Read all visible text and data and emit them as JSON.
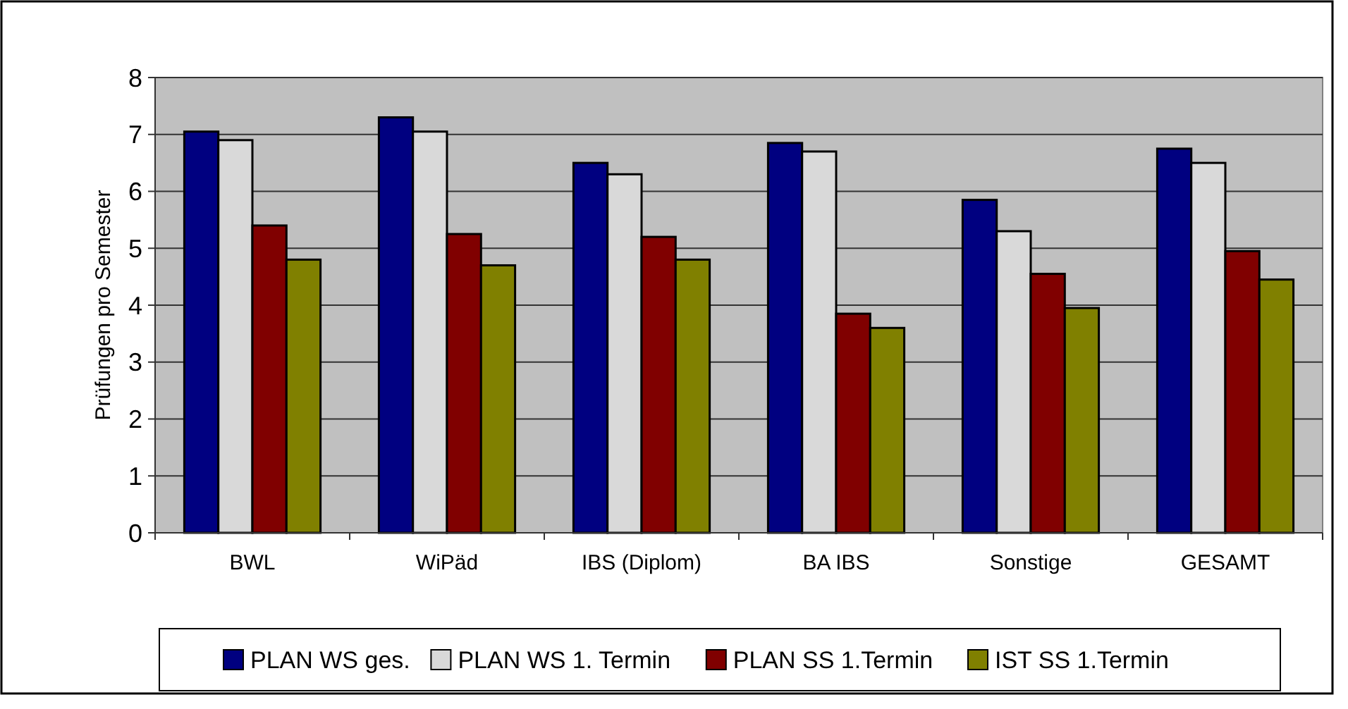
{
  "chart_data": {
    "type": "bar",
    "ylabel": "Prüfungen pro Semester",
    "categories": [
      "BWL",
      "WiPäd",
      "IBS (Diplom)",
      "BA IBS",
      "Sonstige",
      "GESAMT"
    ],
    "series": [
      {
        "name": "PLAN WS ges.",
        "color": "#000080",
        "values": [
          7.05,
          7.3,
          6.5,
          6.85,
          5.85,
          6.75
        ]
      },
      {
        "name": "PLAN WS 1. Termin",
        "color": "#d9d9d9",
        "values": [
          6.9,
          7.05,
          6.3,
          6.7,
          5.3,
          6.5
        ]
      },
      {
        "name": "PLAN SS 1.Termin",
        "color": "#800000",
        "values": [
          5.4,
          5.25,
          5.2,
          3.85,
          4.55,
          4.95
        ]
      },
      {
        "name": "IST SS 1.Termin",
        "color": "#808000",
        "values": [
          4.8,
          4.7,
          4.8,
          3.6,
          3.95,
          4.45
        ]
      }
    ],
    "ylim": [
      0,
      8
    ],
    "yticks": [
      0,
      1,
      2,
      3,
      4,
      5,
      6,
      7,
      8
    ],
    "grid": "y",
    "legend": "bottom"
  }
}
